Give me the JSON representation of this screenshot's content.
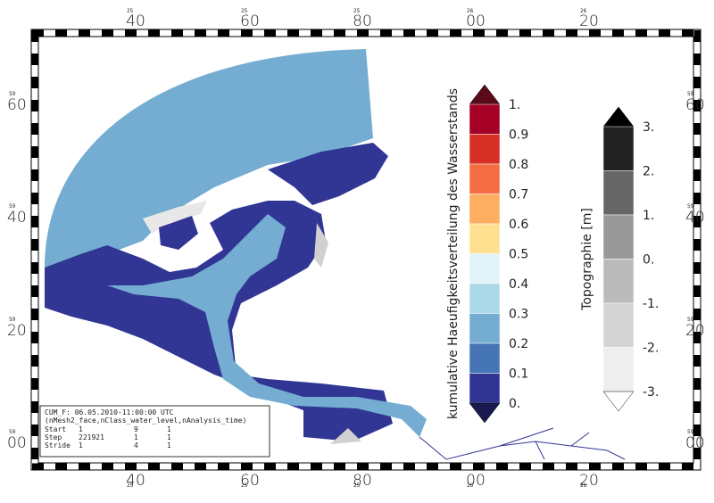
{
  "frame": {
    "top_labels": [
      {
        "minor": "25",
        "major": "40"
      },
      {
        "minor": "25",
        "major": "60"
      },
      {
        "minor": "25",
        "major": "80"
      },
      {
        "minor": "26",
        "major": "00"
      },
      {
        "minor": "26",
        "major": "20"
      }
    ],
    "side_labels": [
      {
        "minor": "59",
        "major": "60"
      },
      {
        "minor": "59",
        "major": "40"
      },
      {
        "minor": "59",
        "major": "20"
      },
      {
        "minor": "59",
        "major": "00"
      }
    ]
  },
  "legend_water": {
    "title": "kumulative Haeufigkeitsverteilung des Wasserstands",
    "labels": [
      "1.",
      "0.9",
      "0.8",
      "0.7",
      "0.6",
      "0.5",
      "0.4",
      "0.3",
      "0.2",
      "0.1",
      "0."
    ],
    "colors": [
      "#5a0a18",
      "#a50026",
      "#d73027",
      "#f46d43",
      "#fdae61",
      "#fee090",
      "#e0f3f8",
      "#abd9e9",
      "#74add1",
      "#4575b4",
      "#313695",
      "#1a1a50"
    ]
  },
  "legend_topo": {
    "title": "Topographie [m]",
    "labels": [
      "3.",
      "2.",
      "1.",
      "0.",
      "-1.",
      "-2.",
      "-3."
    ],
    "colors": [
      "#000000",
      "#222222",
      "#666666",
      "#999999",
      "#bbbbbb",
      "#d4d4d4",
      "#eeeeee",
      "#ffffff"
    ]
  },
  "info": {
    "line1": "CUM_F: 06.05.2010-11:00:00 UTC",
    "line2": "(nMesh2_face,nClass_water_level,nAnalysis_time)",
    "rows": [
      [
        "Start",
        "1",
        "9",
        "1"
      ],
      [
        "Step",
        "221921",
        "1",
        "1"
      ],
      [
        "Stride",
        "1",
        "4",
        "1"
      ]
    ]
  }
}
